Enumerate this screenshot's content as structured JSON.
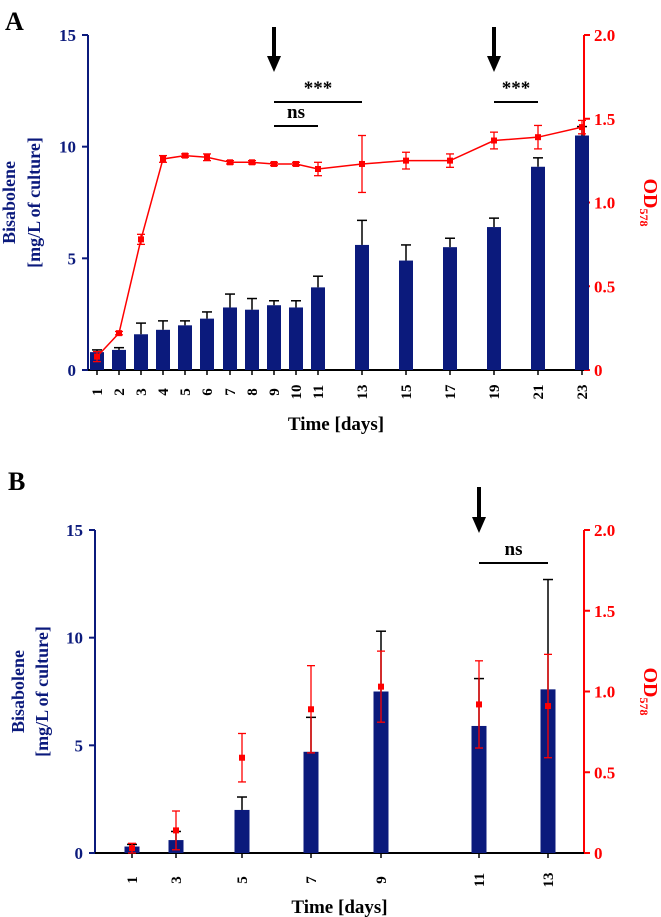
{
  "colors": {
    "bar": "#0b1a7c",
    "line": "#ff0000",
    "axis_left": "#0b1a7c",
    "axis_right": "#ff0000",
    "black": "#000000"
  },
  "chart_data": [
    {
      "panel_label": "A",
      "type": "bar",
      "xlabel": "Time [days]",
      "ylabel_line1": "Bisabolene",
      "ylabel_line2": "[mg/L of culture]",
      "ylim": [
        0,
        15
      ],
      "y_ticks": [
        0,
        5,
        10,
        15
      ],
      "y2label": "OD",
      "y2label_sub": "578",
      "y2lim": [
        0,
        2.0
      ],
      "y2_ticks": [
        "0",
        "0.5",
        "1.0",
        "1.5",
        "2.0"
      ],
      "categories": [
        "1",
        "2",
        "3",
        "4",
        "5",
        "6",
        "7",
        "8",
        "9",
        "10",
        "11",
        "13",
        "15",
        "17",
        "19",
        "21",
        "23"
      ],
      "series": [
        {
          "name": "Bisabolene",
          "type": "bar",
          "values": [
            0.8,
            0.9,
            1.6,
            1.8,
            2.0,
            2.3,
            2.8,
            2.7,
            2.9,
            2.8,
            3.7,
            5.6,
            4.9,
            5.5,
            6.4,
            9.1,
            10.5
          ],
          "errors": [
            0.1,
            0.1,
            0.5,
            0.4,
            0.2,
            0.3,
            0.6,
            0.5,
            0.2,
            0.3,
            0.5,
            1.1,
            0.7,
            0.4,
            0.4,
            0.4,
            0.4
          ]
        },
        {
          "name": "OD578",
          "type": "line",
          "values": [
            0.08,
            0.22,
            0.78,
            1.26,
            1.28,
            1.27,
            1.24,
            1.24,
            1.23,
            1.23,
            1.2,
            1.23,
            1.25,
            1.25,
            1.37,
            1.39,
            1.45
          ],
          "errors": [
            0.03,
            0.01,
            0.03,
            0.02,
            0.01,
            0.02,
            0.01,
            0.01,
            0.01,
            0.01,
            0.04,
            0.17,
            0.05,
            0.04,
            0.05,
            0.07,
            0.04
          ]
        }
      ],
      "arrows_at": [
        "9",
        "19"
      ],
      "annotations": [
        {
          "text": "***",
          "from": "9",
          "to": "13"
        },
        {
          "text": "ns",
          "from": "9",
          "to": "11"
        },
        {
          "text": "***",
          "from": "19",
          "to": "21"
        }
      ]
    },
    {
      "panel_label": "B",
      "type": "bar",
      "xlabel": "Time [days]",
      "ylabel_line1": "Bisabolene",
      "ylabel_line2": "[mg/L of culture]",
      "ylim": [
        0,
        15
      ],
      "y_ticks": [
        0,
        5,
        10,
        15
      ],
      "y2label": "OD",
      "y2label_sub": "578",
      "y2lim": [
        0,
        2.0
      ],
      "y2_ticks": [
        "0",
        "0.5",
        "1.0",
        "1.5",
        "2.0"
      ],
      "categories": [
        "1",
        "3",
        "5",
        "7",
        "9",
        "11",
        "13"
      ],
      "series": [
        {
          "name": "Bisabolene",
          "type": "bar",
          "values": [
            0.3,
            0.6,
            2.0,
            4.7,
            7.5,
            5.9,
            7.6
          ],
          "errors": [
            0.1,
            0.4,
            0.6,
            1.6,
            2.8,
            2.2,
            5.1
          ]
        },
        {
          "name": "OD578",
          "type": "points",
          "values": [
            0.03,
            0.14,
            0.59,
            0.89,
            1.03,
            0.92,
            0.91
          ],
          "errors": [
            0.03,
            0.12,
            0.15,
            0.27,
            0.22,
            0.27,
            0.32
          ]
        }
      ],
      "arrows_at": [
        "11"
      ],
      "annotations": [
        {
          "text": "ns",
          "from": "11",
          "to": "13"
        }
      ]
    }
  ]
}
